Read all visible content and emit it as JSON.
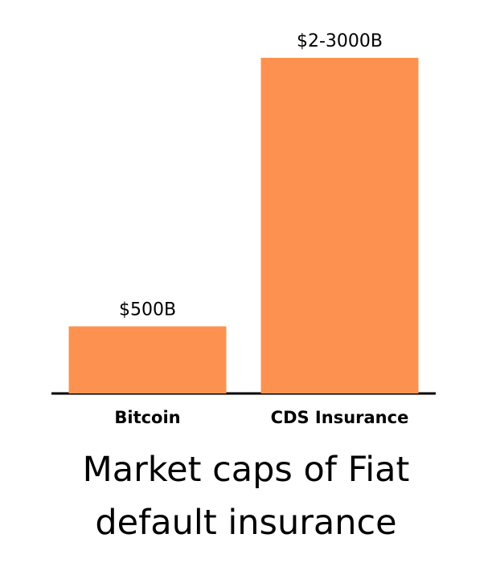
{
  "chart_data": {
    "type": "bar",
    "title": "Market caps of Fiat default insurance",
    "categories": [
      "Bitcoin",
      "CDS Insurance"
    ],
    "values": [
      500,
      2500
    ],
    "value_labels": [
      "$500B",
      "$2-3000B"
    ],
    "color": "#fd9250"
  }
}
